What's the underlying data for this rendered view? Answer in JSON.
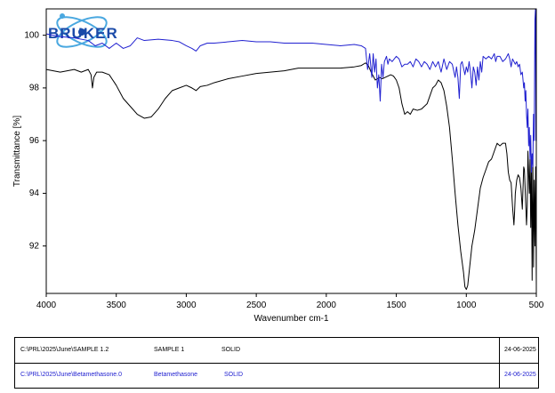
{
  "logo": {
    "text": "BRUKER"
  },
  "chart_data": {
    "type": "line",
    "xlabel": "Wavenumber cm-1",
    "ylabel": "Transmittance [%]",
    "xlim": [
      4000,
      500
    ],
    "ylim": [
      90.2,
      101
    ],
    "x_reversed": true,
    "xticks": [
      4000,
      3500,
      3000,
      2500,
      2000,
      1500,
      1000,
      500
    ],
    "yticks": [
      92,
      94,
      96,
      98,
      100
    ],
    "grid": false,
    "series": [
      {
        "name": "SAMPLE 1",
        "color": "#000000",
        "points": [
          [
            4000,
            98.7
          ],
          [
            3900,
            98.6
          ],
          [
            3800,
            98.7
          ],
          [
            3750,
            98.6
          ],
          [
            3700,
            98.7
          ],
          [
            3680,
            98.5
          ],
          [
            3670,
            98.0
          ],
          [
            3660,
            98.4
          ],
          [
            3640,
            98.6
          ],
          [
            3600,
            98.6
          ],
          [
            3550,
            98.5
          ],
          [
            3500,
            98.1
          ],
          [
            3450,
            97.6
          ],
          [
            3400,
            97.3
          ],
          [
            3350,
            97.0
          ],
          [
            3300,
            96.85
          ],
          [
            3250,
            96.9
          ],
          [
            3200,
            97.2
          ],
          [
            3150,
            97.6
          ],
          [
            3100,
            97.9
          ],
          [
            3050,
            98.0
          ],
          [
            3000,
            98.1
          ],
          [
            2960,
            98.0
          ],
          [
            2930,
            97.9
          ],
          [
            2900,
            98.05
          ],
          [
            2850,
            98.1
          ],
          [
            2800,
            98.2
          ],
          [
            2700,
            98.35
          ],
          [
            2600,
            98.45
          ],
          [
            2500,
            98.55
          ],
          [
            2400,
            98.6
          ],
          [
            2300,
            98.65
          ],
          [
            2200,
            98.75
          ],
          [
            2100,
            98.75
          ],
          [
            2000,
            98.75
          ],
          [
            1900,
            98.75
          ],
          [
            1800,
            98.8
          ],
          [
            1750,
            98.85
          ],
          [
            1720,
            98.95
          ],
          [
            1700,
            98.85
          ],
          [
            1680,
            98.6
          ],
          [
            1650,
            98.3
          ],
          [
            1620,
            98.4
          ],
          [
            1600,
            98.35
          ],
          [
            1580,
            98.4
          ],
          [
            1560,
            98.45
          ],
          [
            1540,
            98.5
          ],
          [
            1520,
            98.45
          ],
          [
            1500,
            98.3
          ],
          [
            1480,
            98.0
          ],
          [
            1460,
            97.4
          ],
          [
            1440,
            97.0
          ],
          [
            1420,
            97.1
          ],
          [
            1400,
            97.0
          ],
          [
            1380,
            97.2
          ],
          [
            1350,
            97.15
          ],
          [
            1320,
            97.2
          ],
          [
            1300,
            97.3
          ],
          [
            1280,
            97.4
          ],
          [
            1260,
            97.7
          ],
          [
            1240,
            98.0
          ],
          [
            1220,
            98.1
          ],
          [
            1200,
            98.3
          ],
          [
            1180,
            98.2
          ],
          [
            1160,
            97.9
          ],
          [
            1140,
            97.3
          ],
          [
            1120,
            96.5
          ],
          [
            1100,
            95.3
          ],
          [
            1080,
            94.0
          ],
          [
            1060,
            92.8
          ],
          [
            1040,
            91.8
          ],
          [
            1020,
            91.0
          ],
          [
            1010,
            90.45
          ],
          [
            1000,
            90.35
          ],
          [
            990,
            90.5
          ],
          [
            980,
            91.0
          ],
          [
            960,
            92.0
          ],
          [
            940,
            92.6
          ],
          [
            920,
            93.4
          ],
          [
            900,
            94.2
          ],
          [
            880,
            94.6
          ],
          [
            860,
            94.9
          ],
          [
            840,
            95.2
          ],
          [
            820,
            95.3
          ],
          [
            800,
            95.6
          ],
          [
            780,
            95.9
          ],
          [
            760,
            95.8
          ],
          [
            740,
            95.9
          ],
          [
            720,
            95.9
          ],
          [
            710,
            95.5
          ],
          [
            700,
            94.8
          ],
          [
            690,
            94.5
          ],
          [
            680,
            94.4
          ],
          [
            670,
            93.5
          ],
          [
            660,
            92.8
          ],
          [
            655,
            93.3
          ],
          [
            650,
            94.0
          ],
          [
            640,
            94.5
          ],
          [
            630,
            94.7
          ],
          [
            620,
            94.6
          ],
          [
            610,
            94.2
          ],
          [
            600,
            93.4
          ],
          [
            590,
            95.0
          ],
          [
            585,
            94.9
          ],
          [
            580,
            94.2
          ],
          [
            570,
            92.8
          ],
          [
            565,
            93.5
          ],
          [
            560,
            95.6
          ],
          [
            550,
            94.0
          ],
          [
            545,
            95.3
          ],
          [
            540,
            92.7
          ],
          [
            535,
            95.2
          ],
          [
            530,
            90.7
          ],
          [
            525,
            95.5
          ],
          [
            520,
            91.2
          ],
          [
            515,
            94.5
          ],
          [
            510,
            92.0
          ],
          [
            505,
            95.0
          ],
          [
            500,
            90.5
          ]
        ]
      },
      {
        "name": "Betamethasone",
        "color": "#2020d0",
        "points": [
          [
            4000,
            100.05
          ],
          [
            3900,
            99.95
          ],
          [
            3800,
            99.9
          ],
          [
            3700,
            99.8
          ],
          [
            3650,
            99.6
          ],
          [
            3600,
            99.7
          ],
          [
            3550,
            99.5
          ],
          [
            3500,
            99.7
          ],
          [
            3450,
            99.5
          ],
          [
            3400,
            99.6
          ],
          [
            3350,
            99.9
          ],
          [
            3300,
            99.8
          ],
          [
            3200,
            99.85
          ],
          [
            3100,
            99.8
          ],
          [
            3050,
            99.75
          ],
          [
            3000,
            99.6
          ],
          [
            2960,
            99.5
          ],
          [
            2930,
            99.4
          ],
          [
            2900,
            99.6
          ],
          [
            2850,
            99.7
          ],
          [
            2800,
            99.7
          ],
          [
            2700,
            99.75
          ],
          [
            2600,
            99.8
          ],
          [
            2500,
            99.75
          ],
          [
            2400,
            99.75
          ],
          [
            2300,
            99.7
          ],
          [
            2200,
            99.7
          ],
          [
            2100,
            99.7
          ],
          [
            2000,
            99.65
          ],
          [
            1900,
            99.6
          ],
          [
            1800,
            99.65
          ],
          [
            1750,
            99.6
          ],
          [
            1720,
            99.5
          ],
          [
            1705,
            98.7
          ],
          [
            1690,
            99.3
          ],
          [
            1675,
            98.4
          ],
          [
            1665,
            99.3
          ],
          [
            1655,
            98.6
          ],
          [
            1645,
            99.1
          ],
          [
            1635,
            98.0
          ],
          [
            1625,
            98.5
          ],
          [
            1615,
            97.5
          ],
          [
            1605,
            98.9
          ],
          [
            1595,
            98.4
          ],
          [
            1585,
            99.0
          ],
          [
            1570,
            99.2
          ],
          [
            1560,
            98.9
          ],
          [
            1550,
            99.1
          ],
          [
            1530,
            99.0
          ],
          [
            1500,
            99.2
          ],
          [
            1480,
            99.1
          ],
          [
            1460,
            98.8
          ],
          [
            1440,
            98.9
          ],
          [
            1420,
            98.9
          ],
          [
            1400,
            99.0
          ],
          [
            1380,
            98.8
          ],
          [
            1360,
            99.1
          ],
          [
            1340,
            99.0
          ],
          [
            1320,
            98.8
          ],
          [
            1300,
            99.0
          ],
          [
            1280,
            98.9
          ],
          [
            1260,
            98.7
          ],
          [
            1240,
            99.0
          ],
          [
            1220,
            98.8
          ],
          [
            1200,
            99.0
          ],
          [
            1180,
            98.6
          ],
          [
            1160,
            99.1
          ],
          [
            1140,
            98.7
          ],
          [
            1120,
            99.0
          ],
          [
            1100,
            98.9
          ],
          [
            1080,
            98.4
          ],
          [
            1070,
            98.8
          ],
          [
            1060,
            98.4
          ],
          [
            1050,
            97.6
          ],
          [
            1040,
            98.9
          ],
          [
            1030,
            99.0
          ],
          [
            1010,
            98.5
          ],
          [
            1000,
            98.8
          ],
          [
            990,
            98.6
          ],
          [
            980,
            99.0
          ],
          [
            970,
            98.6
          ],
          [
            960,
            98.0
          ],
          [
            950,
            98.8
          ],
          [
            940,
            98.6
          ],
          [
            930,
            98.1
          ],
          [
            920,
            98.8
          ],
          [
            910,
            98.3
          ],
          [
            900,
            99.0
          ],
          [
            890,
            98.6
          ],
          [
            880,
            99.2
          ],
          [
            860,
            99.1
          ],
          [
            840,
            99.2
          ],
          [
            820,
            99.1
          ],
          [
            800,
            99.3
          ],
          [
            790,
            99.0
          ],
          [
            780,
            99.2
          ],
          [
            760,
            99.2
          ],
          [
            740,
            99.0
          ],
          [
            720,
            99.1
          ],
          [
            700,
            99.3
          ],
          [
            690,
            99.1
          ],
          [
            680,
            98.8
          ],
          [
            670,
            99.1
          ],
          [
            660,
            99.0
          ],
          [
            650,
            98.9
          ],
          [
            640,
            99.0
          ],
          [
            630,
            98.8
          ],
          [
            620,
            98.9
          ],
          [
            610,
            98.5
          ],
          [
            600,
            98.6
          ],
          [
            590,
            98.0
          ],
          [
            585,
            98.2
          ],
          [
            580,
            97.5
          ],
          [
            575,
            97.9
          ],
          [
            570,
            97.0
          ],
          [
            565,
            96.5
          ],
          [
            560,
            97.2
          ],
          [
            555,
            95.8
          ],
          [
            550,
            96.5
          ],
          [
            545,
            95.3
          ],
          [
            540,
            96.2
          ],
          [
            535,
            94.8
          ],
          [
            530,
            95.5
          ],
          [
            525,
            95.0
          ],
          [
            520,
            97.0
          ],
          [
            515,
            96.0
          ],
          [
            510,
            100.6
          ],
          [
            506,
            101.0
          ],
          [
            503,
            96.0
          ],
          [
            500,
            101.0
          ]
        ]
      }
    ]
  },
  "samples": [
    {
      "path": "C:\\PRL\\2025\\June\\SAMPLE 1.2",
      "name": "SAMPLE 1",
      "state": "SOLID",
      "date": "24-06-2025",
      "color": "#000000"
    },
    {
      "path": "C:\\PRL\\2025\\June\\Betamethasone.0",
      "name": "Betamethasone",
      "state": "SOLID",
      "date": "24-06-2025",
      "color": "#2020d0"
    }
  ]
}
